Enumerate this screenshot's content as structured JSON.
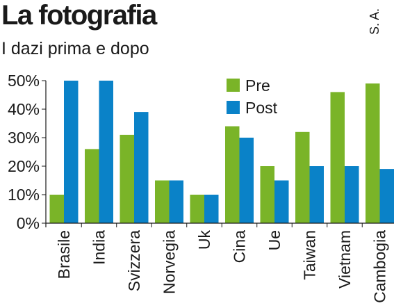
{
  "header": {
    "title": "La fotografia",
    "subtitle": "I dazi prima e dopo",
    "byline": "S. A."
  },
  "colors": {
    "pre": "#7ab428",
    "post": "#0a82c8",
    "axis": "#1a1a1a"
  },
  "chart_data": {
    "type": "bar",
    "categories": [
      "Brasile",
      "India",
      "Svizzera",
      "Norvegia",
      "Uk",
      "Cina",
      "Ue",
      "Taiwan",
      "Vietnam",
      "Cambogia"
    ],
    "series": [
      {
        "name": "Pre",
        "values": [
          10,
          26,
          31,
          15,
          10,
          34,
          20,
          32,
          46,
          49
        ]
      },
      {
        "name": "Post",
        "values": [
          50,
          50,
          39,
          15,
          10,
          30,
          15,
          20,
          20,
          19
        ]
      }
    ],
    "ylim": [
      0,
      50
    ],
    "yticks": [
      0,
      10,
      20,
      30,
      40,
      50
    ],
    "ytick_labels": [
      "0%",
      "10%",
      "20%",
      "30%",
      "40%",
      "50%"
    ],
    "legend": "top-center",
    "grid": false
  }
}
